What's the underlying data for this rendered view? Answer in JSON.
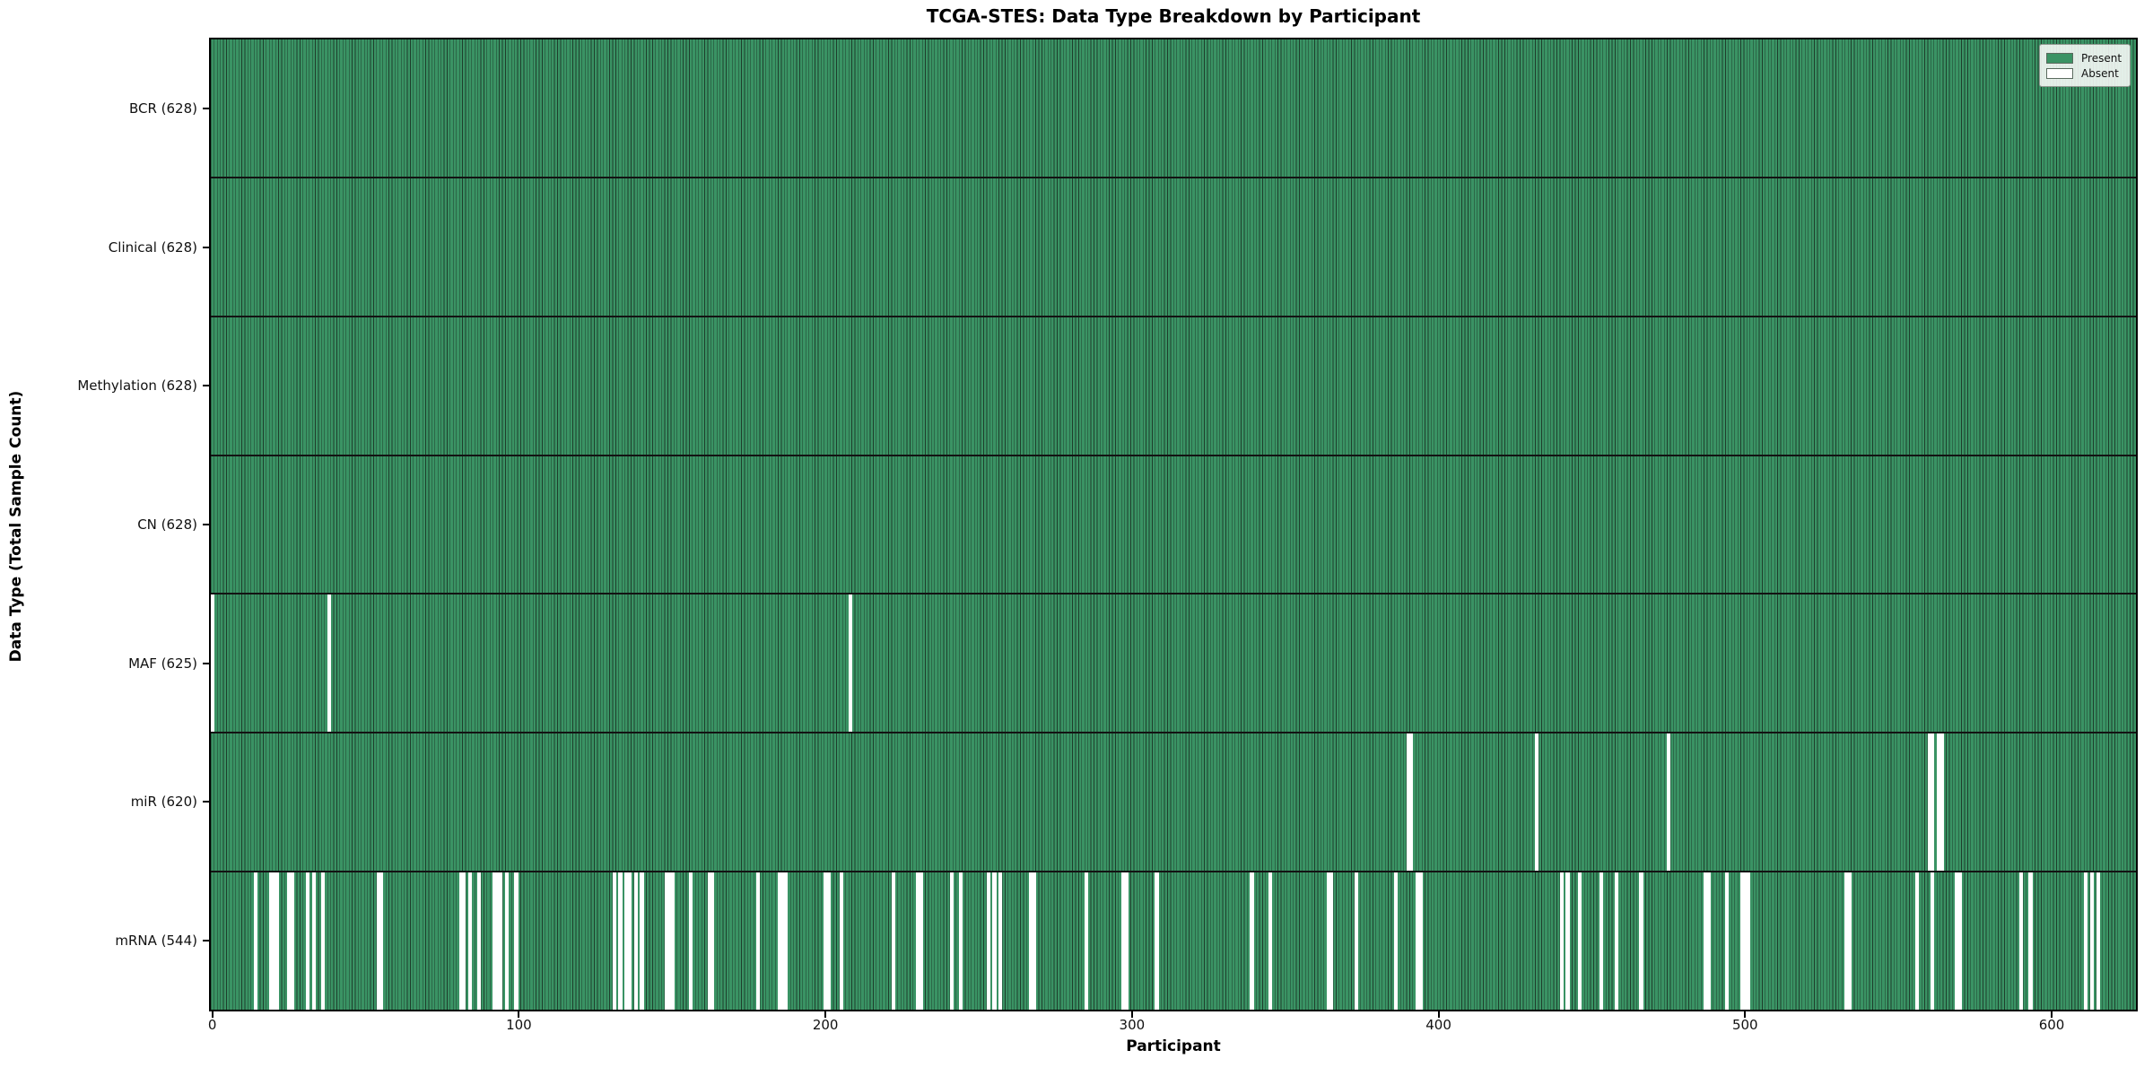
{
  "title": "TCGA-STES: Data Type Breakdown by Participant",
  "xlabel": "Participant",
  "ylabel": "Data Type (Total Sample Count)",
  "legend": {
    "present_label": "Present",
    "absent_label": "Absent",
    "position": "upper right"
  },
  "colors": {
    "present_fill": "#3a9364",
    "bar_edge": "#1e3e2c",
    "absent_fill": "#ffffff",
    "row_separator": "#131313",
    "text": "#000000"
  },
  "chart_data": {
    "type": "heatmap",
    "title": "TCGA-STES: Data Type Breakdown by Participant",
    "xlabel": "Participant",
    "ylabel": "Data Type (Total Sample Count)",
    "legend": [
      "Present",
      "Absent"
    ],
    "legend_position": "upper right",
    "grid": false,
    "n_participants": 628,
    "x_ticks": [
      0,
      100,
      200,
      300,
      400,
      500,
      600
    ],
    "x_range": [
      -0.5,
      627.5
    ],
    "rows": [
      {
        "name": "BCR",
        "label": "BCR (628)",
        "present_count": 628,
        "absent_participants": []
      },
      {
        "name": "Clinical",
        "label": "Clinical (628)",
        "present_count": 628,
        "absent_participants": []
      },
      {
        "name": "Methylation",
        "label": "Methylation (628)",
        "present_count": 628,
        "absent_participants": []
      },
      {
        "name": "CN",
        "label": "CN (628)",
        "present_count": 628,
        "absent_participants": []
      },
      {
        "name": "MAF",
        "label": "MAF (625)",
        "present_count": 625,
        "absent_participants": [
          0,
          38,
          208
        ]
      },
      {
        "name": "miR",
        "label": "miR (620)",
        "present_count": 620,
        "absent_participants": [
          390,
          391,
          432,
          475,
          560,
          561,
          563,
          564
        ]
      },
      {
        "name": "mRNA",
        "label": "mRNA (544)",
        "present_count": 544,
        "absent_participants": [
          14,
          19,
          20,
          21,
          25,
          26,
          31,
          33,
          36,
          54,
          55,
          81,
          82,
          84,
          87,
          92,
          93,
          94,
          96,
          99,
          131,
          133,
          135,
          136,
          138,
          140,
          148,
          149,
          150,
          156,
          162,
          163,
          178,
          185,
          186,
          187,
          200,
          201,
          205,
          222,
          230,
          231,
          241,
          244,
          253,
          255,
          257,
          267,
          268,
          285,
          297,
          298,
          308,
          339,
          345,
          364,
          365,
          373,
          386,
          393,
          394,
          440,
          442,
          446,
          453,
          458,
          466,
          487,
          488,
          494,
          499,
          500,
          501,
          533,
          534,
          556,
          561,
          569,
          570,
          590,
          593,
          611,
          613,
          615
        ]
      }
    ]
  }
}
